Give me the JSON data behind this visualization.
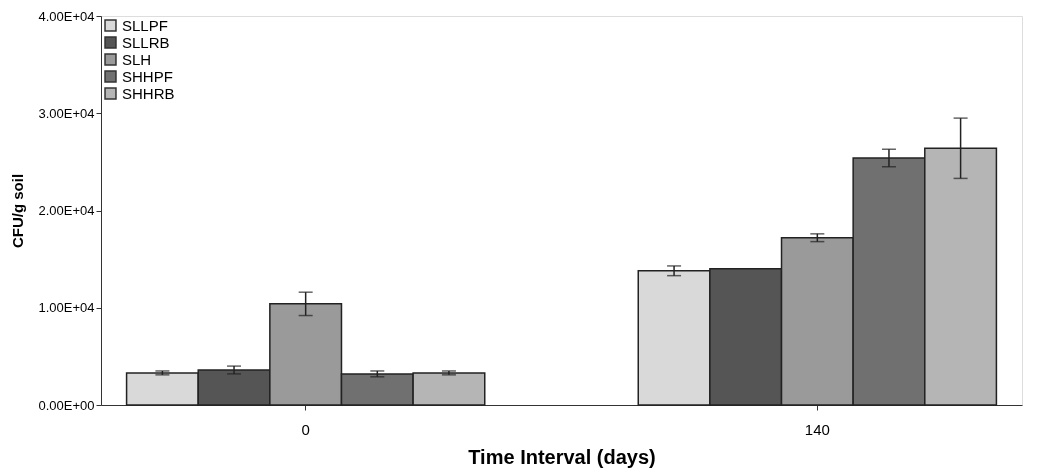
{
  "chart_data": {
    "type": "bar",
    "xlabel": "Time Interval (days)",
    "ylabel": "CFU/g soil",
    "categories": [
      "0",
      "140"
    ],
    "series": [
      {
        "name": "SLLPF",
        "color": "#d9d9d9",
        "values": [
          3300,
          13800
        ],
        "errors": [
          200,
          500
        ]
      },
      {
        "name": "SLLRB",
        "color": "#555555",
        "values": [
          3600,
          14000
        ],
        "errors": [
          400,
          null
        ]
      },
      {
        "name": "SLH",
        "color": "#9a9a9a",
        "values": [
          10400,
          17200
        ],
        "errors": [
          1200,
          400
        ]
      },
      {
        "name": "SHHPF",
        "color": "#707070",
        "values": [
          3200,
          25400
        ],
        "errors": [
          300,
          900
        ]
      },
      {
        "name": "SHHRB",
        "color": "#b5b5b5",
        "values": [
          3300,
          26400
        ],
        "errors": [
          200,
          3100
        ]
      }
    ],
    "ylim": [
      0,
      40000
    ],
    "yticks": [
      {
        "value": 0,
        "label": "0.00E+00"
      },
      {
        "value": 10000,
        "label": "1.00E+04"
      },
      {
        "value": 20000,
        "label": "2.00E+04"
      },
      {
        "value": 30000,
        "label": "3.00E+04"
      },
      {
        "value": 40000,
        "label": "4.00E+04"
      }
    ],
    "grid": false,
    "legend": "top left"
  }
}
